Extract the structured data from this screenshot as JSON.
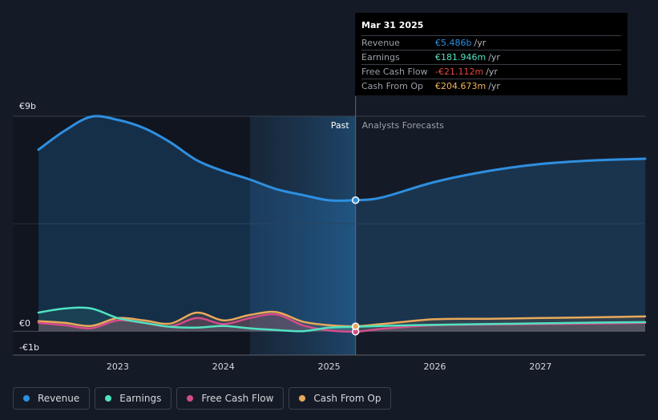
{
  "tooltip": {
    "date": "Mar 31 2025",
    "rows": [
      {
        "label": "Revenue",
        "value": "€5.486b",
        "unit": "/yr",
        "color": "#2e8fe0"
      },
      {
        "label": "Earnings",
        "value": "€181.946m",
        "unit": "/yr",
        "color": "#50e3c2"
      },
      {
        "label": "Free Cash Flow",
        "value": "-€21.112m",
        "unit": "/yr",
        "color": "#e8483f"
      },
      {
        "label": "Cash From Op",
        "value": "€204.673m",
        "unit": "/yr",
        "color": "#f2b35c"
      }
    ]
  },
  "legend": [
    {
      "label": "Revenue",
      "color": "#2e8fe0"
    },
    {
      "label": "Earnings",
      "color": "#50e3c2"
    },
    {
      "label": "Free Cash Flow",
      "color": "#d44c8a"
    },
    {
      "label": "Cash From Op",
      "color": "#e9a95a"
    }
  ],
  "chart_data": {
    "type": "line",
    "x_unit": "year",
    "xlim": [
      2022.25,
      2027.99
    ],
    "ylim": [
      -1,
      9
    ],
    "y_tick_labels": [
      {
        "value": 9,
        "label": "€9b"
      },
      {
        "value": 0,
        "label": "€0"
      },
      {
        "value": -1,
        "label": "-€1b"
      }
    ],
    "x_ticks": [
      {
        "value": 2023,
        "label": "2023"
      },
      {
        "value": 2024,
        "label": "2024"
      },
      {
        "value": 2025,
        "label": "2025"
      },
      {
        "value": 2026,
        "label": "2026"
      },
      {
        "value": 2027,
        "label": "2027"
      }
    ],
    "past_label": "Past",
    "forecast_label": "Analysts Forecasts",
    "past_start": 2024.25,
    "divider": 2025.25,
    "series": [
      {
        "name": "Revenue",
        "color": "#2e8fe0",
        "points": [
          [
            2022.25,
            7.6
          ],
          [
            2022.5,
            8.4
          ],
          [
            2022.75,
            8.98
          ],
          [
            2023.0,
            8.85
          ],
          [
            2023.25,
            8.5
          ],
          [
            2023.5,
            7.9
          ],
          [
            2023.75,
            7.15
          ],
          [
            2024.0,
            6.7
          ],
          [
            2024.25,
            6.35
          ],
          [
            2024.5,
            5.95
          ],
          [
            2024.75,
            5.7
          ],
          [
            2025.0,
            5.48
          ],
          [
            2025.25,
            5.486
          ],
          [
            2025.5,
            5.6
          ],
          [
            2026.0,
            6.25
          ],
          [
            2026.5,
            6.7
          ],
          [
            2027.0,
            7.0
          ],
          [
            2027.5,
            7.15
          ],
          [
            2027.99,
            7.22
          ]
        ]
      },
      {
        "name": "Earnings",
        "color": "#50e3c2",
        "points": [
          [
            2022.25,
            0.78
          ],
          [
            2022.5,
            0.95
          ],
          [
            2022.75,
            0.95
          ],
          [
            2023.0,
            0.55
          ],
          [
            2023.25,
            0.35
          ],
          [
            2023.5,
            0.18
          ],
          [
            2023.75,
            0.15
          ],
          [
            2024.0,
            0.22
          ],
          [
            2024.25,
            0.12
          ],
          [
            2024.5,
            0.05
          ],
          [
            2024.75,
            0.0
          ],
          [
            2025.0,
            0.15
          ],
          [
            2025.25,
            0.182
          ],
          [
            2025.5,
            0.22
          ],
          [
            2026.0,
            0.27
          ],
          [
            2026.5,
            0.3
          ],
          [
            2027.0,
            0.33
          ],
          [
            2027.5,
            0.36
          ],
          [
            2027.99,
            0.38
          ]
        ]
      },
      {
        "name": "Free Cash Flow",
        "color": "#d44c8a",
        "points": [
          [
            2022.25,
            0.35
          ],
          [
            2022.5,
            0.25
          ],
          [
            2022.75,
            0.12
          ],
          [
            2023.0,
            0.45
          ],
          [
            2023.25,
            0.35
          ],
          [
            2023.5,
            0.2
          ],
          [
            2023.75,
            0.55
          ],
          [
            2024.0,
            0.3
          ],
          [
            2024.25,
            0.55
          ],
          [
            2024.5,
            0.7
          ],
          [
            2024.75,
            0.25
          ],
          [
            2025.0,
            0.03
          ],
          [
            2025.25,
            -0.021
          ],
          [
            2025.5,
            0.1
          ],
          [
            2026.0,
            0.25
          ],
          [
            2026.5,
            0.28
          ],
          [
            2027.0,
            0.3
          ],
          [
            2027.5,
            0.32
          ],
          [
            2027.99,
            0.35
          ]
        ]
      },
      {
        "name": "Cash From Op",
        "color": "#e9a95a",
        "points": [
          [
            2022.25,
            0.42
          ],
          [
            2022.5,
            0.35
          ],
          [
            2022.75,
            0.22
          ],
          [
            2023.0,
            0.55
          ],
          [
            2023.25,
            0.45
          ],
          [
            2023.5,
            0.32
          ],
          [
            2023.75,
            0.78
          ],
          [
            2024.0,
            0.45
          ],
          [
            2024.25,
            0.68
          ],
          [
            2024.5,
            0.8
          ],
          [
            2024.75,
            0.4
          ],
          [
            2025.0,
            0.25
          ],
          [
            2025.25,
            0.205
          ],
          [
            2025.5,
            0.3
          ],
          [
            2026.0,
            0.5
          ],
          [
            2026.5,
            0.52
          ],
          [
            2027.0,
            0.55
          ],
          [
            2027.5,
            0.58
          ],
          [
            2027.99,
            0.62
          ]
        ]
      }
    ]
  }
}
